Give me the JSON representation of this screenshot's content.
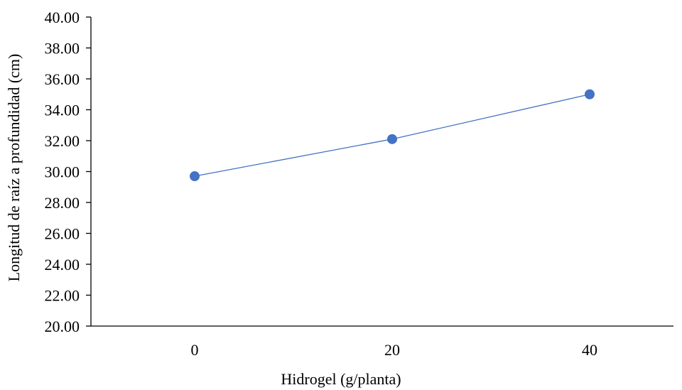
{
  "chart_data": {
    "type": "line",
    "categories": [
      "0",
      "20",
      "40"
    ],
    "x": [
      0,
      20,
      40
    ],
    "series": [
      {
        "values": [
          29.7,
          32.1,
          35.0
        ]
      }
    ],
    "xlabel": "Hidrogel (g/planta)",
    "ylabel": "Longitud de raíz a profundidad (cm)",
    "ylim": [
      20,
      40
    ],
    "yticks": [
      "20.00",
      "22.00",
      "24.00",
      "26.00",
      "28.00",
      "30.00",
      "32.00",
      "34.00",
      "36.00",
      "38.00",
      "40.00"
    ],
    "grid": false,
    "markers": "circle",
    "series_color": "#4472C4",
    "axis_color": "#000000"
  }
}
